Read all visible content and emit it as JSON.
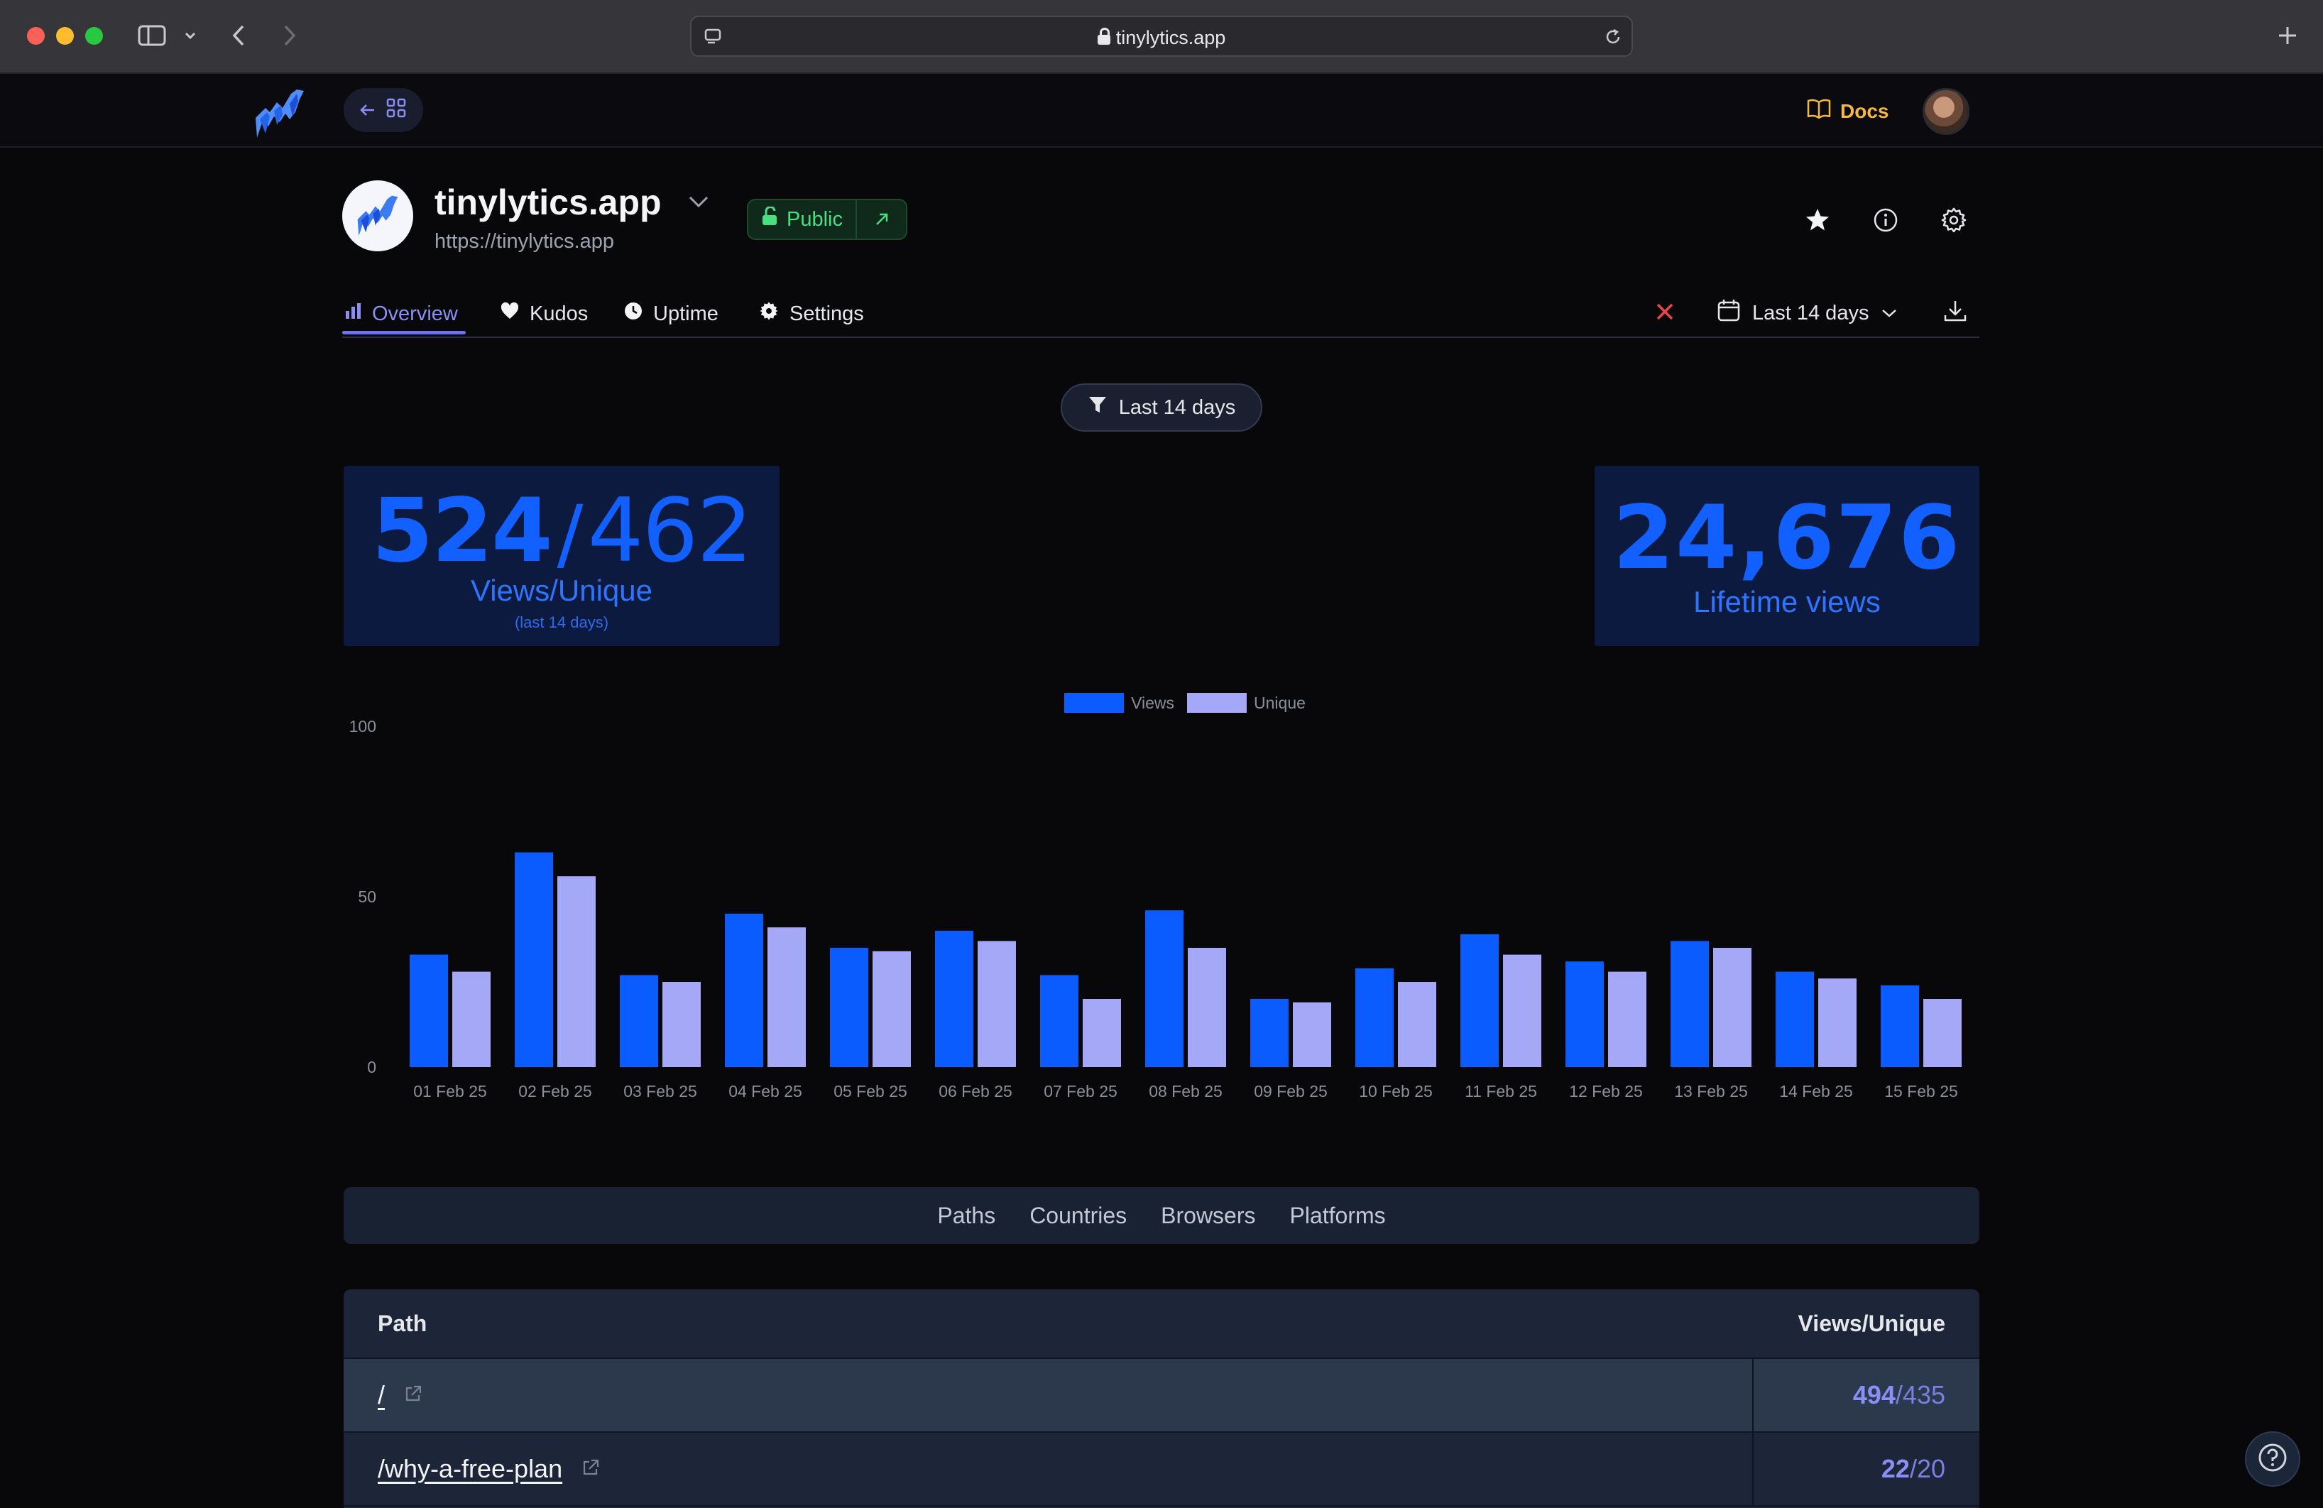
{
  "browser": {
    "url": "tinylytics.app"
  },
  "appbar": {
    "docs_label": "Docs"
  },
  "site": {
    "name": "tinylytics.app",
    "url": "https://tinylytics.app",
    "visibility": "Public"
  },
  "tabs": [
    {
      "label": "Overview",
      "icon": "bar-chart-icon",
      "active": true
    },
    {
      "label": "Kudos",
      "icon": "heart-icon"
    },
    {
      "label": "Uptime",
      "icon": "clock-icon"
    },
    {
      "label": "Settings",
      "icon": "gear-icon"
    }
  ],
  "date_range": {
    "label": "Last 14 days"
  },
  "filter": {
    "label": "Last 14 days"
  },
  "stats": {
    "views": "524",
    "separator": "/",
    "unique": "462",
    "views_label": "Views/Unique",
    "period_label": "(last 14 days)",
    "lifetime": "24,676",
    "lifetime_label": "Lifetime views"
  },
  "colors": {
    "views": "#0a5cff",
    "unique": "#a5a8f7",
    "accent": "#8b8ff5",
    "public": "#4ade80",
    "docs": "#f5b942"
  },
  "chart_data": {
    "type": "bar",
    "categories": [
      "01 Feb 25",
      "02 Feb 25",
      "03 Feb 25",
      "04 Feb 25",
      "05 Feb 25",
      "06 Feb 25",
      "07 Feb 25",
      "08 Feb 25",
      "09 Feb 25",
      "10 Feb 25",
      "11 Feb 25",
      "12 Feb 25",
      "13 Feb 25",
      "14 Feb 25",
      "15 Feb 25"
    ],
    "series": [
      {
        "name": "Views",
        "values": [
          33,
          63,
          27,
          45,
          35,
          40,
          27,
          46,
          20,
          29,
          39,
          31,
          37,
          28,
          24
        ]
      },
      {
        "name": "Unique",
        "values": [
          28,
          56,
          25,
          41,
          34,
          37,
          20,
          35,
          19,
          25,
          33,
          28,
          35,
          26,
          20
        ]
      }
    ],
    "ylim": [
      0,
      100
    ],
    "yticks": [
      0,
      50,
      100
    ],
    "legend": "top-center",
    "grid": false
  },
  "subtabs": [
    "Paths",
    "Countries",
    "Browsers",
    "Platforms"
  ],
  "table": {
    "headers": {
      "path": "Path",
      "value": "Views/Unique"
    },
    "rows": [
      {
        "path": "/",
        "views": "494",
        "unique": "435"
      },
      {
        "path": "/why-a-free-plan",
        "views": "22",
        "unique": "20"
      }
    ]
  }
}
